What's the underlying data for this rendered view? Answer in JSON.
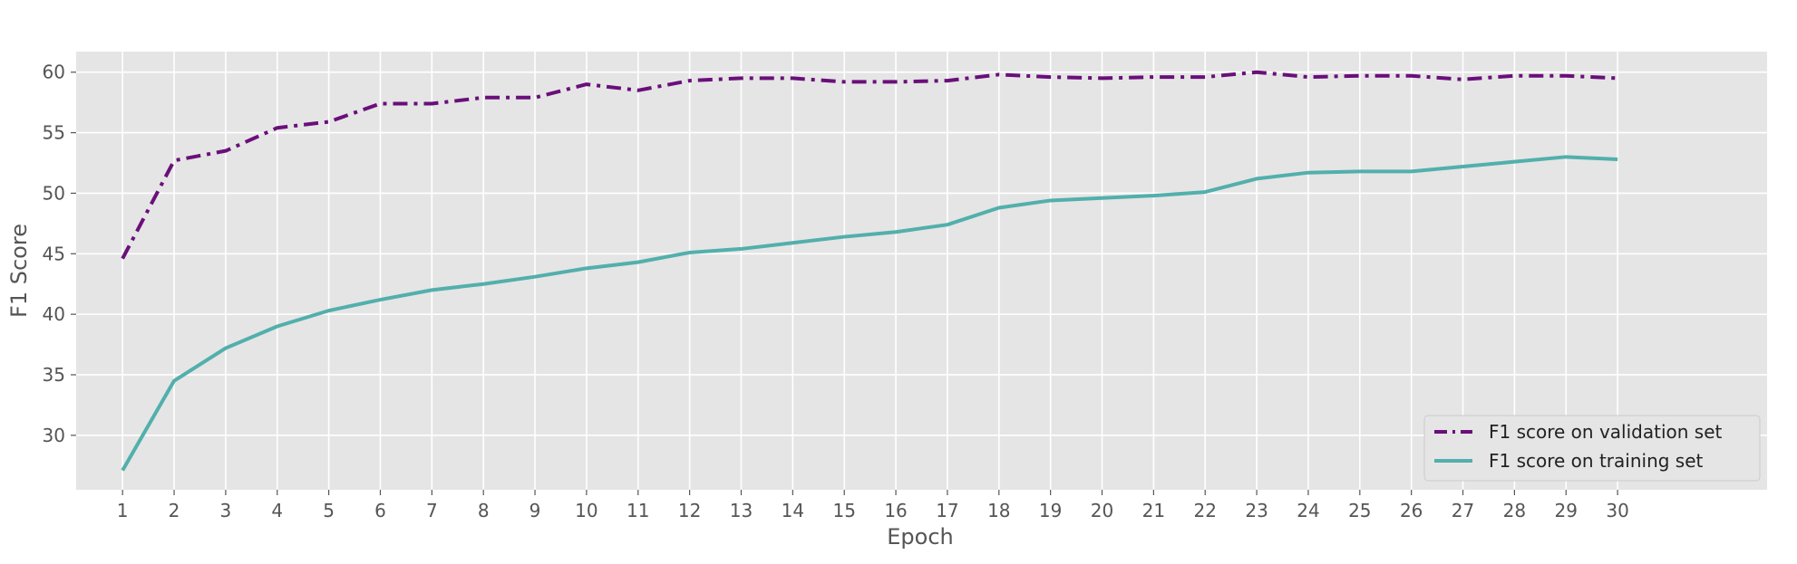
{
  "chart_data": {
    "type": "line",
    "title": "",
    "xlabel": "Epoch",
    "ylabel": "F1 Score",
    "xlim": [
      0.1,
      32.9
    ],
    "ylim": [
      25.5,
      61.7
    ],
    "grid": true,
    "legend_position": "bottom-right",
    "x": [
      1,
      2,
      3,
      4,
      5,
      6,
      7,
      8,
      9,
      10,
      11,
      12,
      13,
      14,
      15,
      16,
      17,
      18,
      19,
      20,
      21,
      22,
      23,
      24,
      25,
      26,
      27,
      28,
      29,
      30
    ],
    "x_ticks": [
      "1",
      "2",
      "3",
      "4",
      "5",
      "6",
      "7",
      "8",
      "9",
      "10",
      "11",
      "12",
      "13",
      "14",
      "15",
      "16",
      "17",
      "18",
      "19",
      "20",
      "21",
      "22",
      "23",
      "24",
      "25",
      "26",
      "27",
      "28",
      "29",
      "30"
    ],
    "y_ticks": [
      30,
      35,
      40,
      45,
      50,
      55,
      60
    ],
    "series": [
      {
        "name": "F1 score on validation set",
        "color": "#6a0f7a",
        "style": "dash-dot",
        "values": [
          44.6,
          52.7,
          53.5,
          55.4,
          55.9,
          57.4,
          57.4,
          57.9,
          57.9,
          59.0,
          58.5,
          59.3,
          59.5,
          59.5,
          59.2,
          59.2,
          59.3,
          59.8,
          59.6,
          59.5,
          59.6,
          59.6,
          60.0,
          59.6,
          59.7,
          59.7,
          59.4,
          59.7,
          59.7,
          59.5
        ]
      },
      {
        "name": "F1 score on training set",
        "color": "#52afac",
        "style": "solid",
        "values": [
          27.1,
          34.5,
          37.2,
          39.0,
          40.3,
          41.2,
          42.0,
          42.5,
          43.1,
          43.8,
          44.3,
          45.1,
          45.4,
          45.9,
          46.4,
          46.8,
          47.4,
          48.8,
          49.4,
          49.6,
          49.8,
          50.1,
          51.2,
          51.7,
          51.8,
          51.8,
          52.2,
          52.6,
          53.0,
          52.8
        ]
      }
    ]
  }
}
